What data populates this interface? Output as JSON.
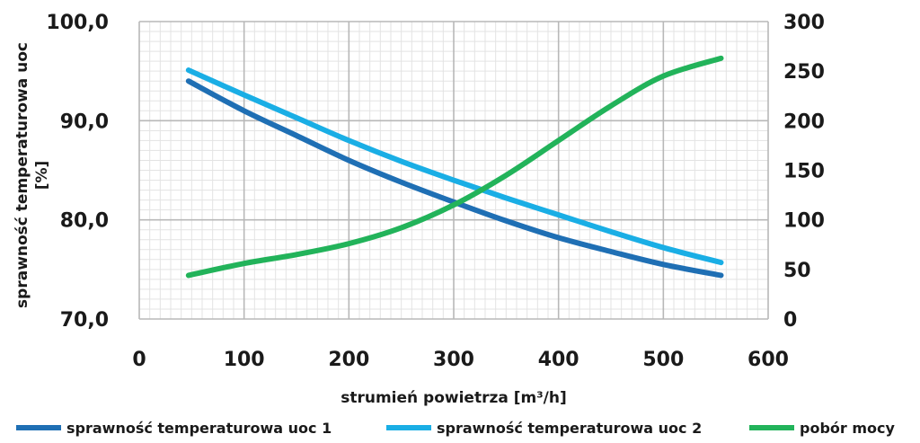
{
  "chart_data": {
    "type": "line",
    "title": "",
    "xlabel": "strumień powietrza [m³/h]",
    "ylabel_line1": "sprawność temperaturowa uoc",
    "ylabel_line2": "[%]",
    "y2label": "",
    "xlim": [
      0,
      600
    ],
    "ylim": [
      70,
      100
    ],
    "y2lim": [
      0,
      300
    ],
    "x_ticks": [
      "0",
      "100",
      "200",
      "300",
      "400",
      "500",
      "600"
    ],
    "y_ticks": [
      "70,0",
      "80,0",
      "90,0",
      "100,0"
    ],
    "y2_ticks": [
      "0",
      "50",
      "100",
      "150",
      "200",
      "250",
      "300"
    ],
    "grid": true,
    "legend_position": "bottom",
    "series": [
      {
        "name": "sprawność temperaturowa uoc 1",
        "axis": "left",
        "color": "#1f6fb4",
        "x": [
          47,
          100,
          150,
          200,
          250,
          300,
          350,
          400,
          450,
          500,
          555
        ],
        "y": [
          94.0,
          91.0,
          88.5,
          86.0,
          83.8,
          81.8,
          79.9,
          78.2,
          76.8,
          75.5,
          74.4
        ]
      },
      {
        "name": "sprawność temperaturowa uoc 2",
        "axis": "left",
        "color": "#1aaee5",
        "x": [
          47,
          100,
          150,
          200,
          250,
          300,
          350,
          400,
          450,
          500,
          555
        ],
        "y": [
          95.1,
          92.6,
          90.3,
          88.0,
          85.9,
          84.0,
          82.2,
          80.5,
          78.8,
          77.2,
          75.7
        ]
      },
      {
        "name": "pobór mocy",
        "axis": "right",
        "color": "#22b35a",
        "x": [
          47,
          100,
          150,
          200,
          250,
          300,
          350,
          400,
          450,
          500,
          555
        ],
        "y": [
          44,
          56,
          65,
          76,
          92,
          115,
          145,
          180,
          215,
          245,
          263
        ]
      }
    ]
  }
}
